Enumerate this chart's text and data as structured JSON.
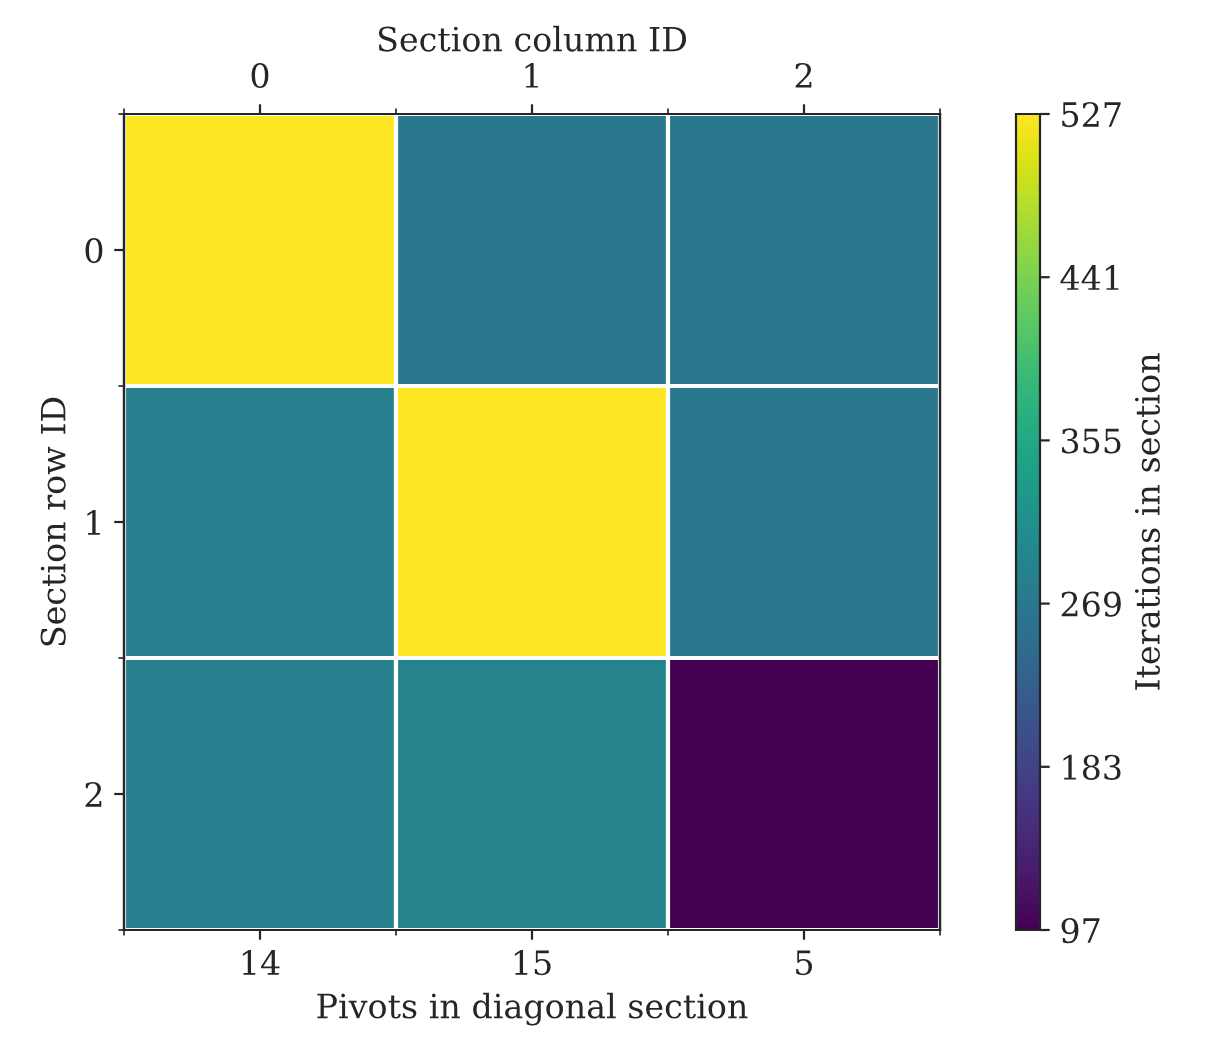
{
  "chart_data": {
    "type": "heatmap",
    "xlabel": "Pivots in diagonal section",
    "x2label": "Section column ID",
    "ylabel": "Section row ID",
    "clabel": "Iterations in section",
    "categories": [
      "14",
      "15",
      "5"
    ],
    "x2lim": [
      -0.5,
      2.5
    ],
    "x2ticks": [
      0,
      1,
      2
    ],
    "y_categories": [
      "0",
      "1",
      "2"
    ],
    "cells": [
      [
        527,
        269,
        269
      ],
      [
        282,
        527,
        269
      ],
      [
        282,
        290,
        97
      ]
    ],
    "clim": [
      97,
      527
    ],
    "cticks": [
      97,
      183,
      269,
      355,
      441,
      527
    ]
  }
}
